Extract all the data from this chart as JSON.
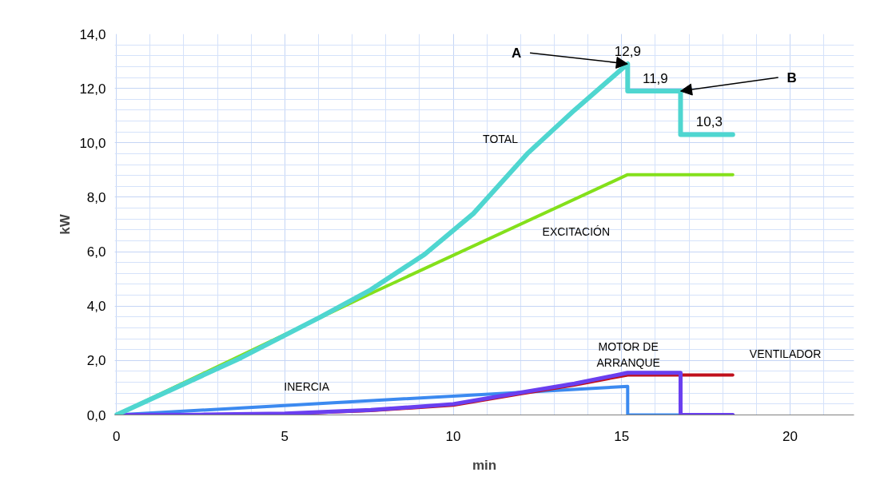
{
  "chart_data": {
    "type": "line",
    "xlabel": "min",
    "ylabel": "kW",
    "xlim": [
      -0.05,
      21.9
    ],
    "xticks": [
      0,
      5,
      10,
      15,
      20
    ],
    "ylim": [
      0,
      14
    ],
    "yticks": [
      {
        "value": 0,
        "label": "0,0"
      },
      {
        "value": 2,
        "label": "2,0"
      },
      {
        "value": 4,
        "label": "4,0"
      },
      {
        "value": 6,
        "label": "6,0"
      },
      {
        "value": 8,
        "label": "8,0"
      },
      {
        "value": 10,
        "label": "10,0"
      },
      {
        "value": 12,
        "label": "12,0"
      },
      {
        "value": 14,
        "label": "14,0"
      }
    ],
    "grid": true,
    "marker": "none",
    "line_style": "solid",
    "series": [
      {
        "name": "INERCIA",
        "color": "#3c8af0",
        "x": [
          0,
          15.18,
          15.18,
          18.3
        ],
        "values": [
          0,
          1.05,
          0,
          0
        ]
      },
      {
        "name": "VENTILADOR",
        "color": "#c0101c",
        "x": [
          5,
          7.55,
          10,
          12,
          13.6,
          15.18,
          18.3
        ],
        "values": [
          0.04,
          0.16,
          0.36,
          0.78,
          1.1,
          1.47,
          1.47
        ]
      },
      {
        "name": "MOTOR DE ARRANQUE",
        "color": "#6a3ff0",
        "x": [
          0,
          2.5,
          5,
          7.55,
          10,
          12,
          13.6,
          15.18,
          16.75,
          16.75,
          18.3
        ],
        "values": [
          0,
          0.01,
          0.05,
          0.18,
          0.4,
          0.82,
          1.15,
          1.55,
          1.55,
          0,
          0
        ]
      },
      {
        "name": "EXCITACIÓN",
        "color": "#84e01b",
        "x": [
          0,
          7.55,
          15.18,
          18.3
        ],
        "values": [
          0,
          4.46,
          8.83,
          8.83
        ]
      },
      {
        "name": "TOTAL",
        "color": "#4fd6d0",
        "x": [
          0,
          3.7,
          6.06,
          7.55,
          9.15,
          10.6,
          12.2,
          13.6,
          15.18,
          15.18,
          16.75,
          16.75,
          18.3
        ],
        "values": [
          0,
          2.1,
          3.6,
          4.6,
          5.9,
          7.4,
          9.6,
          11.2,
          12.9,
          11.9,
          11.9,
          10.3,
          10.3
        ]
      }
    ],
    "annotations": [
      {
        "text": "12,9",
        "x": 15.18,
        "y": 12.9
      },
      {
        "text": "11,9",
        "x": 16.0,
        "y": 11.9
      },
      {
        "text": "10,3",
        "x": 17.6,
        "y": 10.3
      },
      {
        "text": "A",
        "x": 15.18,
        "y": 12.9
      },
      {
        "text": "B",
        "x": 16.75,
        "y": 11.9
      }
    ]
  }
}
